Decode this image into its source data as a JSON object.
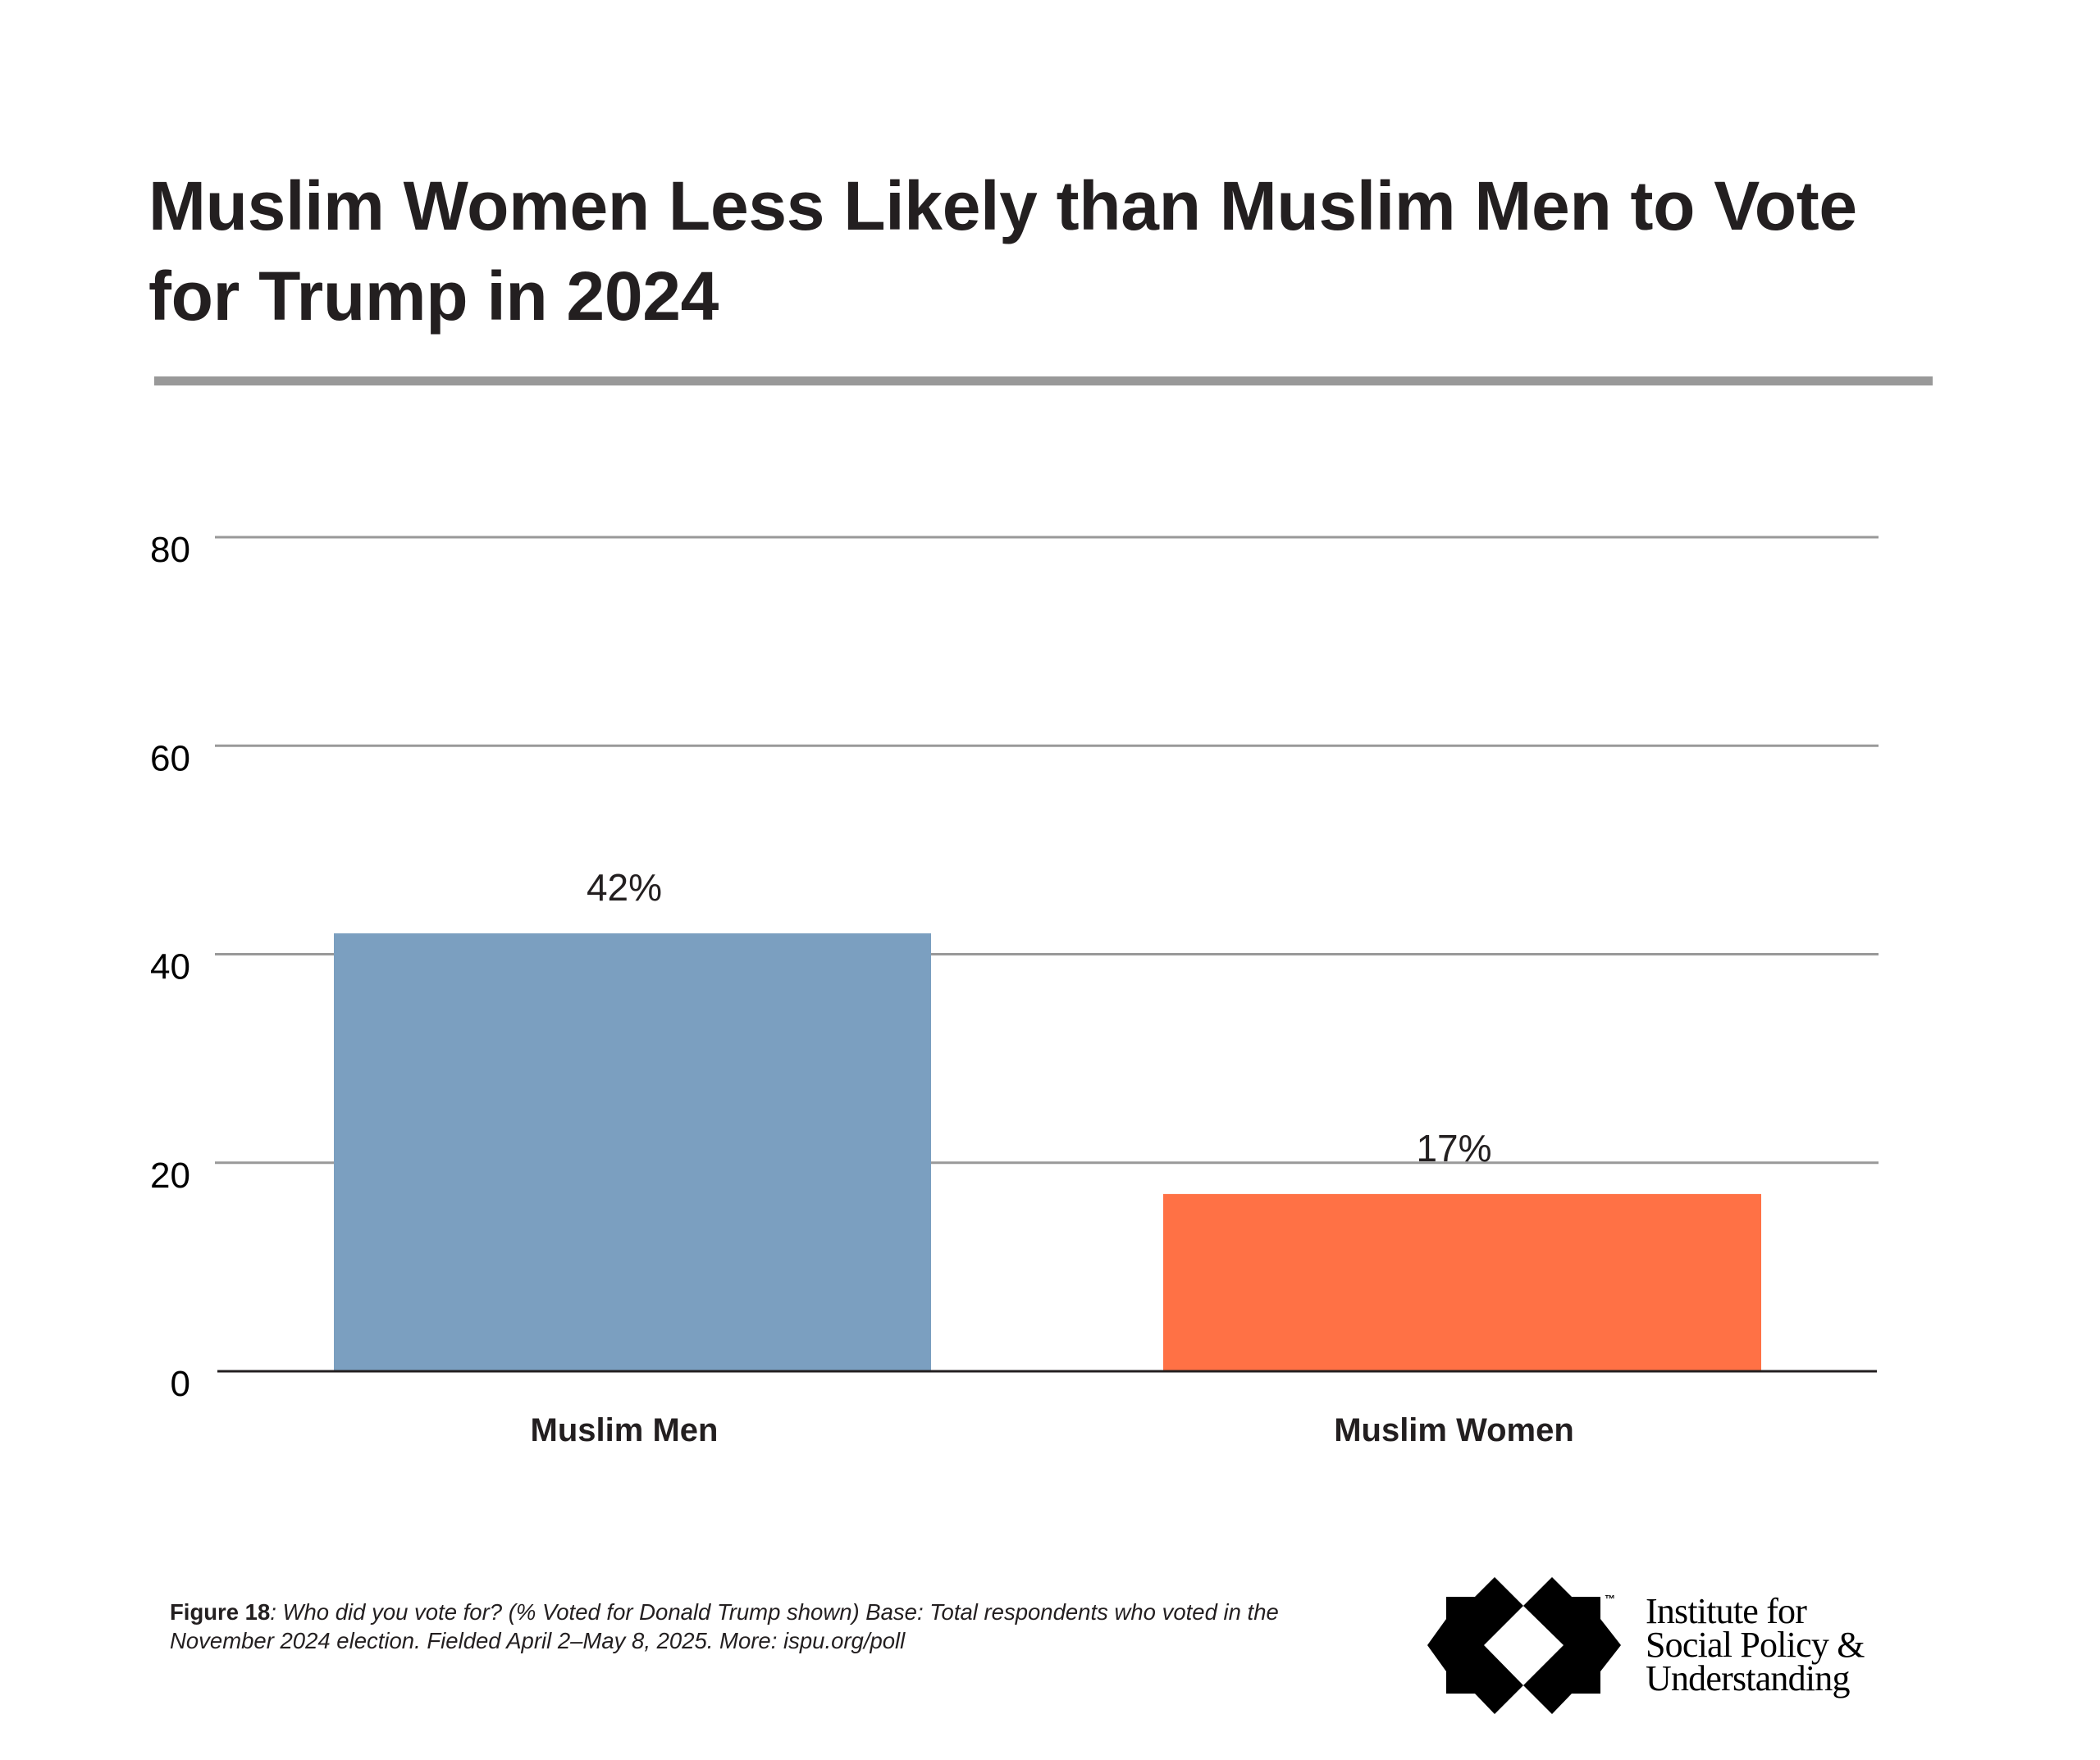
{
  "title": {
    "line1": "Muslim Women Less Likely than Muslim Men to Vote",
    "line2": "for Trump in 2024"
  },
  "chart_data": {
    "type": "bar",
    "title": "Muslim Women Less Likely than Muslim Men to Vote for Trump in 2024",
    "xlabel": "",
    "ylabel": "",
    "categories": [
      "Muslim Men",
      "Muslim Women"
    ],
    "values": [
      42,
      17
    ],
    "data_labels": [
      "42%",
      "17%"
    ],
    "colors": [
      "#7b9fc0",
      "#ff7145"
    ],
    "ylim": [
      0,
      80
    ],
    "yticks": [
      0,
      20,
      40,
      60,
      80
    ],
    "ytick_labels": [
      "0",
      "20",
      "40",
      "60",
      "80"
    ],
    "grid": true,
    "legend": "none"
  },
  "colors": {
    "grid": "#999999",
    "axis": "#231f20",
    "title_rule": "#999999",
    "text": "#231f20"
  },
  "footnote": {
    "figure_label": "Figure 18",
    "text": ": Who did you vote for? (% Voted for Donald Trump shown) Base: Total respondents who voted in the November 2024 election. Fielded April 2–May 8, 2025. More: ispu.org/poll"
  },
  "logo": {
    "icon": "eight-point-star-icon",
    "trademark": "™",
    "lines": [
      "Institute for",
      "Social Policy &",
      "Understanding"
    ]
  }
}
